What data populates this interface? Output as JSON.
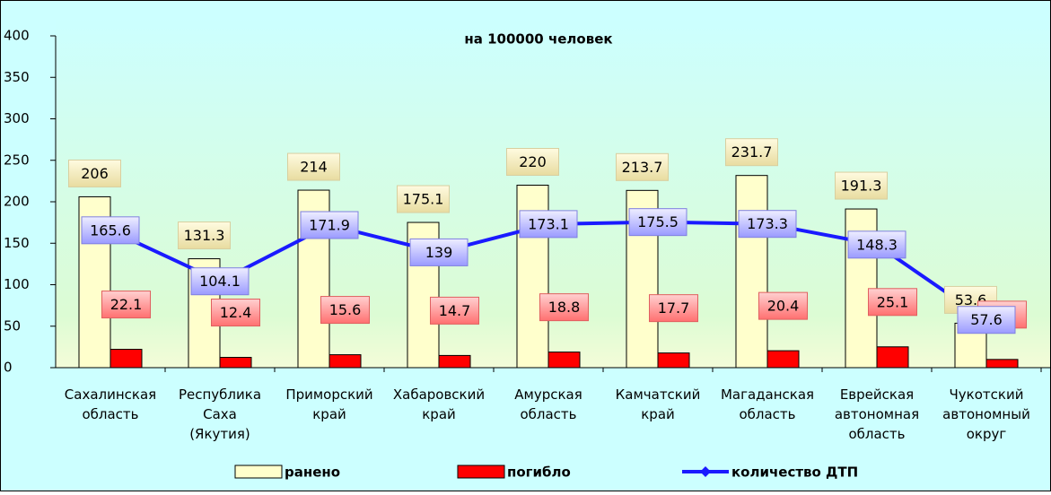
{
  "chart_data": {
    "type": "bar-line",
    "title": "на 100000 человек",
    "categories": [
      "Сахалинская\nобласть",
      "Республика\nСаха\n(Якутия)",
      "Приморский\nкрай",
      "Хабаровский\nкрай",
      "Амурская\nобласть",
      "Камчатский\nкрай",
      "Магаданская\nобласть",
      "Еврейская\nавтономная\nобласть",
      "Чукотский\nавтономный\nокруг"
    ],
    "series": [
      {
        "name": "ранено",
        "type": "bar",
        "color": "#ffffcc",
        "values": [
          206,
          131.3,
          214,
          175.1,
          220,
          213.7,
          231.7,
          191.3,
          53.6
        ]
      },
      {
        "name": "погибло",
        "type": "bar",
        "color": "#ff0000",
        "values": [
          22.1,
          12.4,
          15.6,
          14.7,
          18.8,
          17.7,
          20.4,
          25.1,
          9.9
        ]
      },
      {
        "name": "количество ДТП",
        "type": "line",
        "color": "#1a1aff",
        "values": [
          165.6,
          104.1,
          171.9,
          139,
          173.1,
          175.5,
          173.3,
          148.3,
          57.6
        ]
      }
    ],
    "ylim": [
      0,
      400
    ],
    "yticks": [
      0,
      50,
      100,
      150,
      200,
      250,
      300,
      350,
      400
    ],
    "legend": "bottom"
  }
}
